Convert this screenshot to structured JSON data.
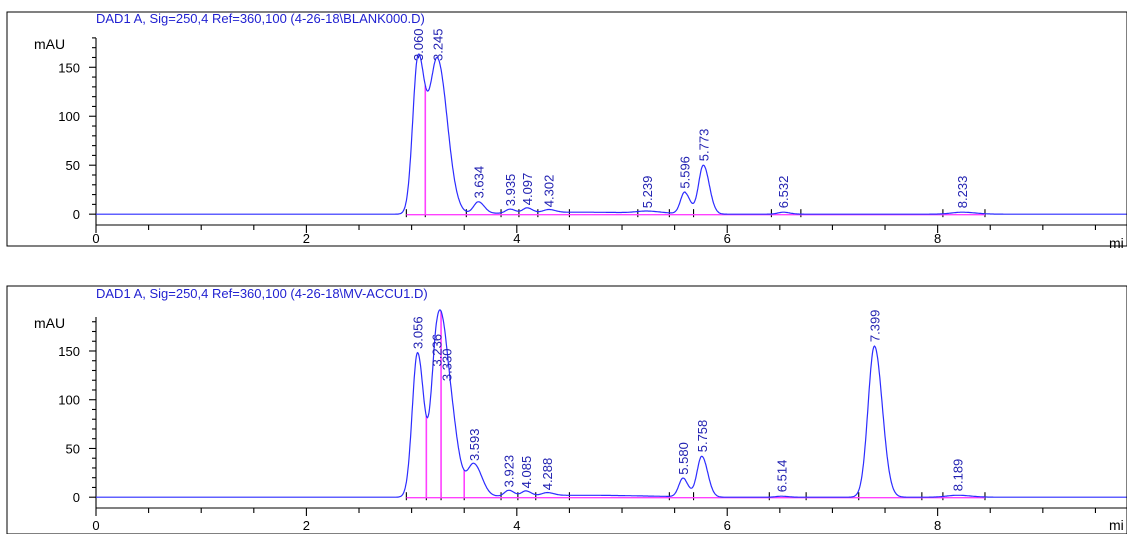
{
  "chart_data": [
    {
      "type": "line",
      "title": "DAD1 A, Sig=250,4 Ref=360,100 (4-26-18\\BLANK000.D)",
      "ylabel": "mAU",
      "xlabel": "mi",
      "xlim": [
        0,
        9.8
      ],
      "ylim": [
        -8,
        185
      ],
      "x_ticks": [
        0,
        2,
        4,
        6,
        8
      ],
      "y_ticks": [
        0,
        50,
        100,
        150
      ],
      "peaks": [
        {
          "rt": 3.06,
          "height": 155,
          "width": 0.05,
          "label": "3.060"
        },
        {
          "rt": 3.245,
          "height": 158,
          "width": 0.075,
          "label": "3.245"
        },
        {
          "rt": 3.634,
          "height": 12,
          "width": 0.045,
          "label": "3.634"
        },
        {
          "rt": 3.935,
          "height": 4,
          "width": 0.04,
          "label": "3.935"
        },
        {
          "rt": 4.097,
          "height": 5,
          "width": 0.04,
          "label": "4.097"
        },
        {
          "rt": 4.302,
          "height": 3,
          "width": 0.05,
          "label": "4.302"
        },
        {
          "rt": 5.239,
          "height": 2,
          "width": 0.1,
          "label": "5.239"
        },
        {
          "rt": 5.596,
          "height": 22,
          "width": 0.04,
          "label": "5.596"
        },
        {
          "rt": 5.773,
          "height": 50,
          "width": 0.045,
          "label": "5.773"
        },
        {
          "rt": 6.532,
          "height": 2,
          "width": 0.05,
          "label": "6.532"
        },
        {
          "rt": 8.233,
          "height": 2,
          "width": 0.1,
          "label": "8.233"
        }
      ],
      "integration_marks": [
        2.95,
        3.13,
        3.52,
        3.85,
        4.02,
        4.2,
        4.5,
        5.15,
        5.45,
        5.68,
        6.42,
        6.7,
        8.05,
        8.45
      ],
      "drop_lines": [
        3.13
      ]
    },
    {
      "type": "line",
      "title": "DAD1 A, Sig=250,4 Ref=360,100 (4-26-18\\MV-ACCU1.D)",
      "ylabel": "mAU",
      "xlabel": "mi",
      "xlim": [
        0,
        9.8
      ],
      "ylim": [
        -8,
        190
      ],
      "x_ticks": [
        0,
        2,
        4,
        6,
        8
      ],
      "y_ticks": [
        0,
        50,
        100,
        150
      ],
      "peaks": [
        {
          "rt": 3.056,
          "height": 148,
          "width": 0.05,
          "label": "3.056"
        },
        {
          "rt": 3.236,
          "height": 130,
          "width": 0.05,
          "label": "3.236"
        },
        {
          "rt": 3.33,
          "height": 115,
          "width": 0.07,
          "label": "3.330"
        },
        {
          "rt": 3.593,
          "height": 33,
          "width": 0.06,
          "label": "3.593"
        },
        {
          "rt": 3.923,
          "height": 6,
          "width": 0.04,
          "label": "3.923"
        },
        {
          "rt": 4.085,
          "height": 5,
          "width": 0.04,
          "label": "4.085"
        },
        {
          "rt": 4.288,
          "height": 3,
          "width": 0.05,
          "label": "4.288"
        },
        {
          "rt": 5.58,
          "height": 19,
          "width": 0.04,
          "label": "5.580"
        },
        {
          "rt": 5.758,
          "height": 42,
          "width": 0.045,
          "label": "5.758"
        },
        {
          "rt": 6.514,
          "height": 1,
          "width": 0.05,
          "label": "6.514"
        },
        {
          "rt": 7.399,
          "height": 155,
          "width": 0.06,
          "label": "7.399"
        },
        {
          "rt": 8.189,
          "height": 2,
          "width": 0.1,
          "label": "8.189"
        }
      ],
      "integration_marks": [
        2.95,
        3.14,
        3.28,
        3.5,
        3.85,
        4.01,
        4.18,
        4.5,
        5.45,
        5.68,
        6.4,
        6.75,
        7.25,
        7.85,
        8.05,
        8.45
      ],
      "drop_lines": [
        3.14,
        3.28,
        3.5
      ]
    }
  ]
}
